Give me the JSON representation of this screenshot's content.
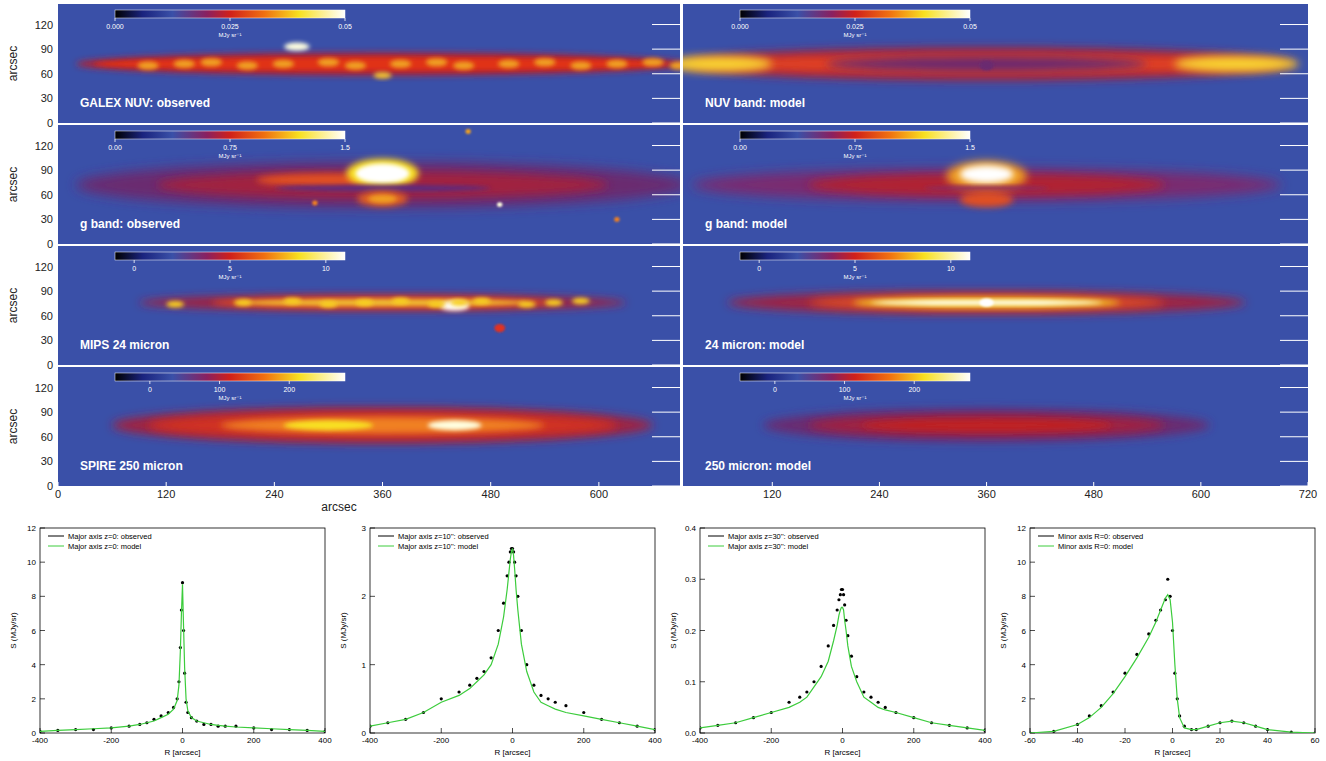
{
  "chart_data": [
    {
      "type": "image",
      "title": "GALEX NUV: observed",
      "xlim": [
        0,
        690
      ],
      "ylim": [
        0,
        145
      ],
      "yticks": [
        0,
        30,
        60,
        90,
        120
      ],
      "ylabel": "arcsec",
      "tick_labels": "y",
      "colorbar": {
        "range": [
          0,
          0.05
        ],
        "ticks": [
          {
            "value": 0,
            "label": "0.000"
          },
          0.025,
          0.05
        ],
        "label": "MJy sr⁻¹"
      }
    },
    {
      "type": "image",
      "title": "NUV band: model",
      "xlim": [
        20,
        720
      ],
      "ylim": [
        0,
        145
      ],
      "yticks": [
        0,
        30,
        60,
        90,
        120
      ],
      "tick_labels": false,
      "colorbar": {
        "range": [
          0,
          0.05
        ],
        "ticks": [
          {
            "value": 0,
            "label": "0.000"
          },
          0.025,
          0.05
        ],
        "label": "MJy sr⁻¹"
      }
    },
    {
      "type": "image",
      "title": "g band: observed",
      "xlim": [
        0,
        690
      ],
      "ylim": [
        0,
        145
      ],
      "yticks": [
        0,
        30,
        60,
        90,
        120
      ],
      "ylabel": "arcsec",
      "tick_labels": "y",
      "colorbar": {
        "range": [
          0,
          1.5
        ],
        "ticks": [
          {
            "value": 0,
            "label": "0.00"
          },
          0.75,
          1.5
        ],
        "label": "MJy sr⁻¹"
      }
    },
    {
      "type": "image",
      "title": "g band: model",
      "xlim": [
        20,
        720
      ],
      "ylim": [
        0,
        145
      ],
      "yticks": [
        0,
        30,
        60,
        90,
        120
      ],
      "tick_labels": false,
      "colorbar": {
        "range": [
          0,
          1.5
        ],
        "ticks": [
          {
            "value": 0,
            "label": "0.00"
          },
          0.75,
          1.5
        ],
        "label": "MJy sr⁻¹"
      }
    },
    {
      "type": "image",
      "title": "MIPS 24 micron",
      "xlim": [
        0,
        690
      ],
      "ylim": [
        0,
        145
      ],
      "yticks": [
        0,
        30,
        60,
        90,
        120
      ],
      "ylabel": "arcsec",
      "tick_labels": "y",
      "colorbar": {
        "range": [
          -1,
          11
        ],
        "ticks": [
          0,
          5,
          10
        ],
        "label": "MJy sr⁻¹"
      }
    },
    {
      "type": "image",
      "title": "24 micron: model",
      "xlim": [
        20,
        720
      ],
      "ylim": [
        0,
        145
      ],
      "yticks": [
        0,
        30,
        60,
        90,
        120
      ],
      "tick_labels": false,
      "colorbar": {
        "range": [
          -1,
          11
        ],
        "ticks": [
          0,
          5,
          10
        ],
        "label": "MJy sr⁻¹"
      }
    },
    {
      "type": "image",
      "title": "SPIRE 250 micron",
      "xlim": [
        0,
        690
      ],
      "ylim": [
        0,
        145
      ],
      "xticks": [
        0,
        120,
        240,
        360,
        480,
        600
      ],
      "yticks": [
        0,
        30,
        60,
        90,
        120
      ],
      "xlabel": "arcsec",
      "ylabel": "arcsec",
      "tick_labels": true,
      "colorbar": {
        "range": [
          -50,
          280
        ],
        "ticks": [
          0,
          100,
          200
        ],
        "label": "MJy sr⁻¹"
      }
    },
    {
      "type": "image",
      "title": "250 micron: model",
      "xlim": [
        20,
        720
      ],
      "ylim": [
        0,
        145
      ],
      "xticks": [
        120,
        240,
        360,
        480,
        600,
        720
      ],
      "yticks": [
        0,
        30,
        60,
        90,
        120
      ],
      "tick_labels": "x",
      "colorbar": {
        "range": [
          -50,
          280
        ],
        "ticks": [
          0,
          100,
          200
        ],
        "label": "MJy sr⁻¹"
      }
    },
    {
      "type": "line",
      "xlabel": "R [arcsec]",
      "ylabel": "S (MJy/sr)",
      "xlim": [
        -400,
        400
      ],
      "xticks": [
        -400,
        -200,
        0,
        200,
        400
      ],
      "ylim": [
        0,
        12
      ],
      "yticks": [
        0,
        2,
        4,
        6,
        8,
        10,
        12
      ],
      "legend": "upper left",
      "x": [
        -400,
        -350,
        -300,
        -250,
        -200,
        -150,
        -120,
        -100,
        -80,
        -60,
        -40,
        -25,
        -15,
        -10,
        -6,
        -3,
        0,
        3,
        6,
        10,
        15,
        25,
        40,
        60,
        80,
        100,
        120,
        150,
        200,
        250,
        300,
        350,
        400
      ],
      "series": [
        {
          "name": "Major axis z=0: observed",
          "type": "scatter",
          "marker": "dot",
          "color": "#000000",
          "values": [
            0.1,
            0.15,
            0.2,
            0.2,
            0.3,
            0.4,
            0.5,
            0.6,
            0.8,
            1.0,
            1.2,
            1.5,
            2.0,
            3.0,
            5.0,
            7.2,
            8.8,
            6.0,
            3.5,
            1.8,
            1.2,
            0.9,
            0.7,
            0.5,
            0.5,
            0.4,
            0.4,
            0.4,
            0.3,
            0.2,
            0.2,
            0.15,
            0.1
          ]
        },
        {
          "name": "Major axis z=0: model",
          "type": "line",
          "color": "#3ccc3c",
          "values": [
            0.1,
            0.15,
            0.2,
            0.25,
            0.3,
            0.4,
            0.5,
            0.6,
            0.7,
            0.9,
            1.1,
            1.4,
            1.9,
            2.8,
            4.8,
            7.0,
            8.7,
            6.2,
            3.8,
            2.0,
            1.3,
            0.9,
            0.7,
            0.6,
            0.5,
            0.45,
            0.4,
            0.35,
            0.3,
            0.25,
            0.2,
            0.15,
            0.1
          ]
        }
      ]
    },
    {
      "type": "line",
      "xlabel": "R [arcsec]",
      "ylabel": "S (MJy/sr)",
      "xlim": [
        -400,
        400
      ],
      "xticks": [
        -400,
        -200,
        0,
        200,
        400
      ],
      "ylim": [
        0,
        3
      ],
      "yticks": [
        0,
        1,
        2,
        3
      ],
      "legend": "upper left",
      "x": [
        -400,
        -350,
        -300,
        -250,
        -200,
        -150,
        -120,
        -100,
        -80,
        -60,
        -40,
        -25,
        -15,
        -10,
        -6,
        -3,
        0,
        3,
        6,
        10,
        15,
        25,
        40,
        60,
        80,
        100,
        120,
        150,
        200,
        250,
        300,
        350,
        400
      ],
      "series": [
        {
          "name": "Major axis z=10'': observed",
          "type": "scatter",
          "marker": "dot",
          "color": "#000000",
          "values": [
            0.1,
            0.15,
            0.2,
            0.3,
            0.5,
            0.6,
            0.7,
            0.8,
            0.9,
            1.1,
            1.5,
            1.9,
            2.3,
            2.5,
            2.65,
            2.7,
            2.7,
            2.65,
            2.5,
            2.3,
            2.0,
            1.5,
            1.0,
            0.7,
            0.55,
            0.5,
            0.45,
            0.4,
            0.3,
            0.2,
            0.15,
            0.1,
            0.05
          ]
        },
        {
          "name": "Major axis z=10'': model",
          "type": "line",
          "color": "#3ccc3c",
          "values": [
            0.1,
            0.15,
            0.2,
            0.3,
            0.45,
            0.55,
            0.65,
            0.75,
            0.85,
            1.0,
            1.3,
            1.7,
            2.1,
            2.35,
            2.55,
            2.65,
            2.7,
            2.6,
            2.4,
            2.1,
            1.8,
            1.3,
            0.9,
            0.6,
            0.45,
            0.4,
            0.35,
            0.3,
            0.25,
            0.2,
            0.15,
            0.1,
            0.05
          ]
        }
      ]
    },
    {
      "type": "line",
      "xlabel": "R [arcsec]",
      "ylabel": "S (MJy/sr)",
      "xlim": [
        -400,
        400
      ],
      "xticks": [
        -400,
        -200,
        0,
        200,
        400
      ],
      "ylim": [
        0,
        0.4
      ],
      "yticks": [
        {
          "value": 0,
          "label": "0.0"
        },
        0.1,
        0.2,
        0.3,
        0.4
      ],
      "legend": "upper left",
      "x": [
        -400,
        -350,
        -300,
        -250,
        -200,
        -150,
        -120,
        -100,
        -80,
        -60,
        -40,
        -25,
        -15,
        -10,
        -6,
        -3,
        0,
        3,
        6,
        10,
        15,
        25,
        40,
        60,
        80,
        100,
        120,
        150,
        200,
        250,
        300,
        350,
        400
      ],
      "series": [
        {
          "name": "Major axis z=30'': observed",
          "type": "scatter",
          "marker": "dot",
          "color": "#000000",
          "values": [
            0.01,
            0.015,
            0.02,
            0.03,
            0.04,
            0.06,
            0.07,
            0.08,
            0.1,
            0.13,
            0.17,
            0.21,
            0.24,
            0.26,
            0.27,
            0.28,
            0.28,
            0.27,
            0.25,
            0.22,
            0.19,
            0.15,
            0.11,
            0.08,
            0.07,
            0.06,
            0.05,
            0.04,
            0.03,
            0.02,
            0.015,
            0.01,
            0.005
          ]
        },
        {
          "name": "Major axis z=30'': model",
          "type": "line",
          "color": "#3ccc3c",
          "values": [
            0.01,
            0.015,
            0.02,
            0.03,
            0.04,
            0.05,
            0.06,
            0.07,
            0.09,
            0.11,
            0.14,
            0.18,
            0.21,
            0.23,
            0.24,
            0.245,
            0.245,
            0.24,
            0.22,
            0.2,
            0.17,
            0.13,
            0.1,
            0.07,
            0.06,
            0.05,
            0.045,
            0.04,
            0.03,
            0.02,
            0.015,
            0.01,
            0.005
          ]
        }
      ]
    },
    {
      "type": "line",
      "xlabel": "R [arcsec]",
      "ylabel": "S (MJy/sr)",
      "xlim": [
        -60,
        60
      ],
      "xticks": [
        -60,
        -40,
        -20,
        0,
        20,
        40,
        60
      ],
      "ylim": [
        0,
        12
      ],
      "yticks": [
        0,
        2,
        4,
        6,
        8,
        10,
        12
      ],
      "legend": "upper left",
      "x": [
        -60,
        -50,
        -40,
        -35,
        -30,
        -25,
        -20,
        -15,
        -10,
        -7,
        -5,
        -3,
        -2,
        -1,
        0,
        1,
        2,
        3,
        5,
        8,
        10,
        15,
        20,
        25,
        30,
        35,
        40,
        50,
        60
      ],
      "series": [
        {
          "name": "Minor axis R=0: observed",
          "type": "scatter",
          "marker": "dot",
          "color": "#000000",
          "values": [
            0,
            0.1,
            0.5,
            1.0,
            1.6,
            2.4,
            3.5,
            4.6,
            5.8,
            6.6,
            7.2,
            7.8,
            9.0,
            8.0,
            6.0,
            3.5,
            2.0,
            1.0,
            0.4,
            0.2,
            0.2,
            0.4,
            0.6,
            0.7,
            0.6,
            0.4,
            0.2,
            0.05,
            0
          ]
        },
        {
          "name": "Minor axis R=0: model",
          "type": "line",
          "color": "#3ccc3c",
          "values": [
            0,
            0.1,
            0.5,
            0.9,
            1.5,
            2.3,
            3.3,
            4.4,
            5.6,
            6.5,
            7.2,
            7.9,
            8.1,
            7.8,
            6.5,
            4.0,
            2.0,
            0.9,
            0.3,
            0.2,
            0.2,
            0.4,
            0.6,
            0.7,
            0.6,
            0.4,
            0.2,
            0.05,
            0
          ]
        }
      ]
    }
  ]
}
